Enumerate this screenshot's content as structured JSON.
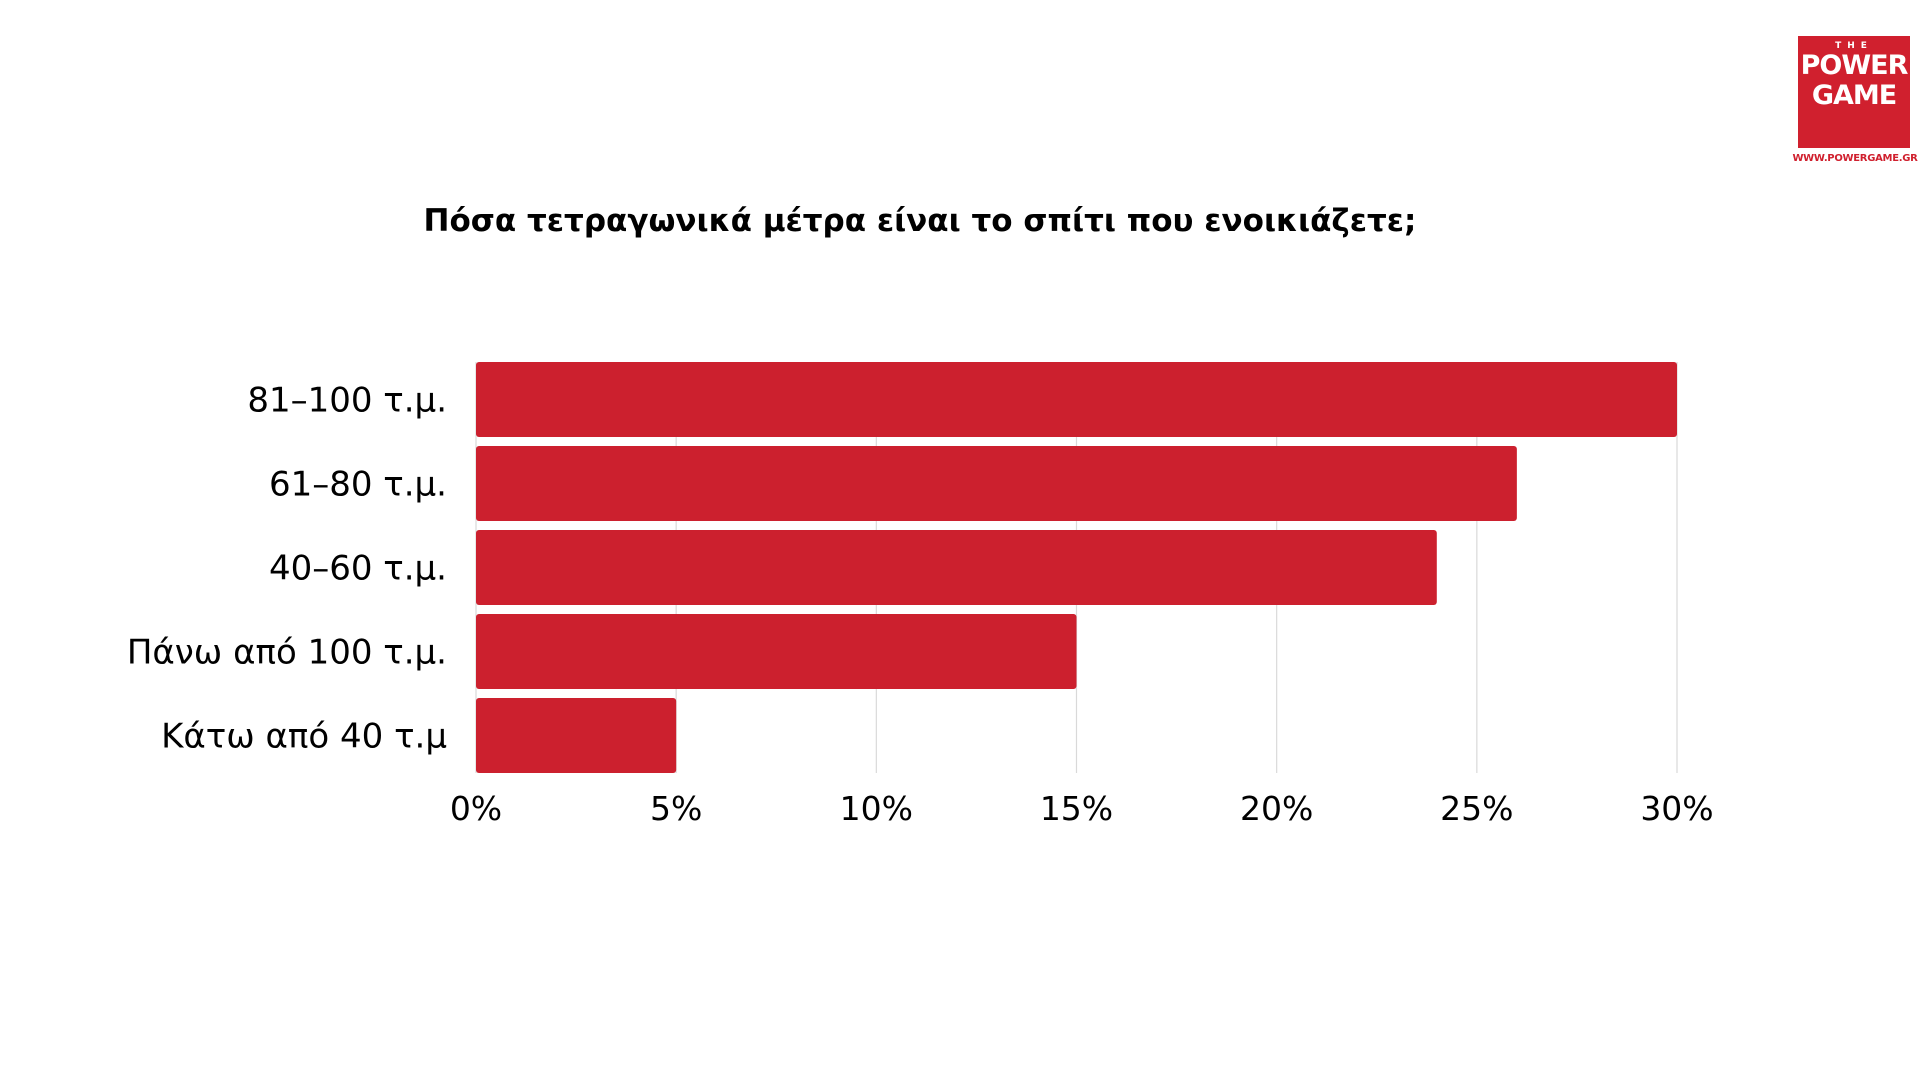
{
  "brand": {
    "logo_the": "THE",
    "logo_line1": "POWER",
    "logo_line2": "GAME",
    "url": "WWW.POWERGAME.GR",
    "color": "#d0202e"
  },
  "chart_data": {
    "type": "bar",
    "orientation": "horizontal",
    "title": "Πόσα τετραγωνικά μέτρα είναι το σπίτι που ενοικιάζετε;",
    "categories": [
      "81–100 τ.μ.",
      "61–80 τ.μ.",
      "40–60 τ.μ.",
      "Πάνω από 100 τ.μ.",
      "Κάτω από 40 τ.μ"
    ],
    "values": [
      30,
      26,
      24,
      15,
      5
    ],
    "value_unit": "%",
    "xlim": [
      0,
      30
    ],
    "xticks": [
      "0%",
      "5%",
      "10%",
      "15%",
      "20%",
      "25%",
      "30%"
    ],
    "xlabel": "",
    "ylabel": "",
    "grid": "vertical",
    "legend": "none",
    "bar_color": "#cc202e",
    "grid_color": "#d9d9d9"
  }
}
